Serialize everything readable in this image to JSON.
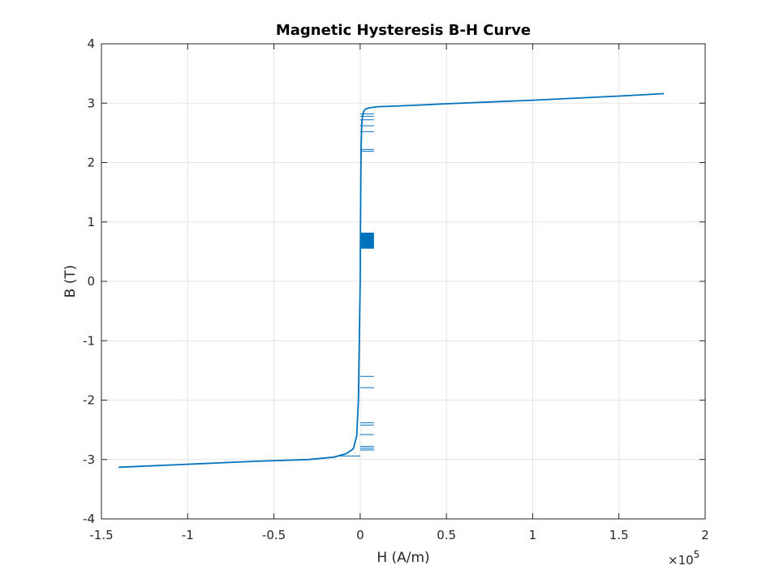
{
  "chart_data": {
    "type": "line",
    "title": "Magnetic Hysteresis B-H Curve",
    "xlabel": "H (A/m)",
    "ylabel": "B (T)",
    "x_exponent_label": "×10",
    "x_exponent_power": "5",
    "xlim": [
      -150000,
      200000
    ],
    "ylim": [
      -4,
      4
    ],
    "grid": true,
    "line_color": "#0072BD",
    "xticks": [
      -150000,
      -100000,
      -50000,
      0,
      50000,
      100000,
      150000,
      200000
    ],
    "xtick_labels": [
      "-1.5",
      "-1",
      "-0.5",
      "0",
      "0.5",
      "1",
      "1.5",
      "2"
    ],
    "yticks": [
      -4,
      -3,
      -2,
      -1,
      0,
      1,
      2,
      3,
      4
    ],
    "ytick_labels": [
      "-4",
      "-3",
      "-2",
      "-1",
      "0",
      "1",
      "2",
      "3",
      "4"
    ],
    "series": [
      {
        "x": [
          -140000,
          -100000,
          -60000,
          -30000,
          -15000,
          -8000,
          -4000,
          -2000,
          -1000,
          -500,
          0,
          200,
          400,
          600,
          800,
          1000,
          1500,
          2000,
          3000,
          5000,
          10000,
          20000,
          50000,
          100000,
          150000,
          176000
        ],
        "y": [
          -3.13,
          -3.08,
          -3.03,
          -3.0,
          -2.96,
          -2.9,
          -2.82,
          -2.6,
          -2.0,
          -1.0,
          0.0,
          1.0,
          1.8,
          2.3,
          2.55,
          2.68,
          2.8,
          2.86,
          2.9,
          2.92,
          2.94,
          2.95,
          2.99,
          3.05,
          3.12,
          3.16
        ]
      }
    ],
    "horizontal_spikes": [
      {
        "y": 2.82,
        "x1": 0,
        "x2": 8000
      },
      {
        "y": 2.78,
        "x1": 0,
        "x2": 8000
      },
      {
        "y": 2.72,
        "x1": 0,
        "x2": 8000
      },
      {
        "y": 2.62,
        "x1": 0,
        "x2": 8000
      },
      {
        "y": 2.52,
        "x1": 0,
        "x2": 8000
      },
      {
        "y": 2.22,
        "x1": 0,
        "x2": 8000
      },
      {
        "y": 2.19,
        "x1": 0,
        "x2": 8000
      },
      {
        "y": -1.6,
        "x1": 0,
        "x2": 8000
      },
      {
        "y": -1.79,
        "x1": 0,
        "x2": 8000
      },
      {
        "y": -2.38,
        "x1": 0,
        "x2": 8000
      },
      {
        "y": -2.42,
        "x1": 0,
        "x2": 8000
      },
      {
        "y": -2.58,
        "x1": 0,
        "x2": 8000
      },
      {
        "y": -2.78,
        "x1": 0,
        "x2": 8000
      },
      {
        "y": -2.81,
        "x1": 0,
        "x2": 8000
      },
      {
        "y": -2.84,
        "x1": 0,
        "x2": 8000
      },
      {
        "y": -2.94,
        "x1": -12000,
        "x2": 0
      }
    ],
    "filled_block": {
      "x1": 0,
      "x2": 8000,
      "y1": 0.55,
      "y2": 0.82
    }
  }
}
